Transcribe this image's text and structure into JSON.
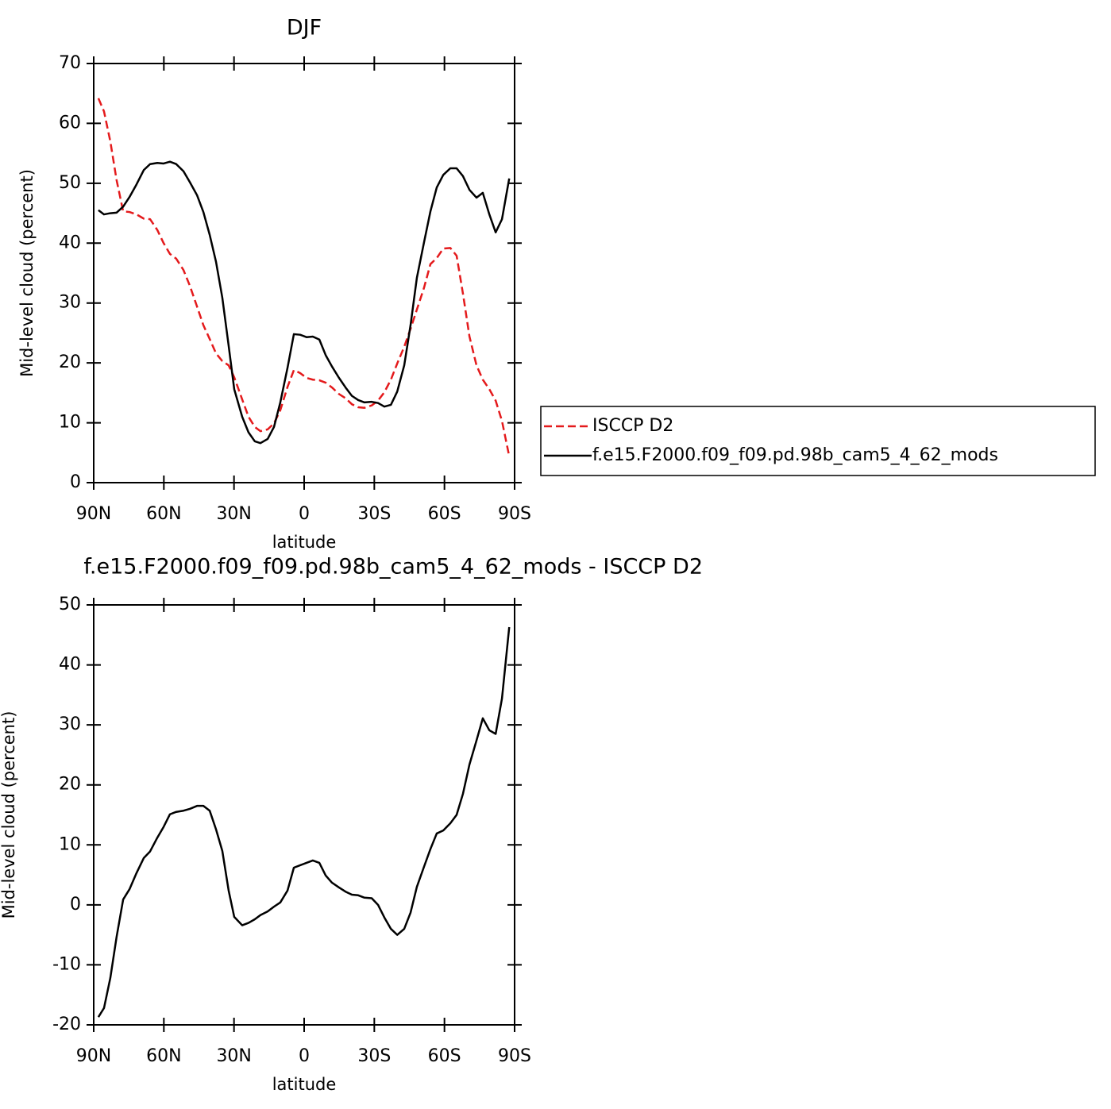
{
  "chart_data": [
    {
      "type": "line",
      "title": "DJF",
      "xlabel": "latitude",
      "ylabel": "Mid-level cloud (percent)",
      "x": [
        88.0,
        85.6,
        82.9,
        80.2,
        77.4,
        74.7,
        71.7,
        68.6,
        65.9,
        62.8,
        60.1,
        57.4,
        54.7,
        51.6,
        48.9,
        45.8,
        43.1,
        40.4,
        37.7,
        35.0,
        32.3,
        29.9,
        26.5,
        23.8,
        21.1,
        18.7,
        15.6,
        12.9,
        10.2,
        7.1,
        4.4,
        1.7,
        -1.0,
        -3.7,
        -6.5,
        -9.2,
        -11.9,
        -14.9,
        -17.7,
        -20.4,
        -23.1,
        -25.8,
        -28.9,
        -31.6,
        -34.3,
        -37.1,
        -39.8,
        -42.8,
        -45.5,
        -48.2,
        -51.3,
        -54.0,
        -56.7,
        -59.5,
        -62.5,
        -65.2,
        -67.9,
        -70.7,
        -73.7,
        -76.4,
        -79.2,
        -81.9,
        -84.6,
        -87.7
      ],
      "series": [
        {
          "name": "ISCCP D2",
          "color": "#e41a1c",
          "dashed": true,
          "values": [
            64.2,
            62.0,
            57.0,
            50.5,
            45.3,
            45.2,
            44.8,
            44.1,
            44.0,
            42.2,
            40.0,
            38.2,
            37.4,
            35.5,
            32.9,
            29.4,
            26.3,
            24.0,
            21.6,
            20.3,
            19.6,
            17.6,
            13.9,
            11.0,
            9.3,
            8.6,
            8.9,
            9.9,
            12.1,
            16.0,
            18.8,
            18.3,
            17.5,
            17.2,
            17.1,
            16.7,
            15.9,
            14.8,
            14.1,
            13.1,
            12.6,
            12.5,
            12.9,
            13.7,
            15.1,
            17.2,
            19.9,
            22.7,
            25.7,
            28.9,
            32.6,
            36.5,
            37.5,
            39.1,
            39.2,
            37.9,
            31.6,
            24.4,
            19.6,
            17.2,
            15.6,
            13.7,
            10.3,
            4.4
          ]
        },
        {
          "name": "f.e15.F2000.f09_f09.pd.98b_cam5_4_62_mods",
          "color": "#000000",
          "dashed": false,
          "values": [
            45.5,
            44.8,
            45.0,
            45.1,
            46.1,
            47.7,
            49.8,
            52.2,
            53.2,
            53.4,
            53.3,
            53.6,
            53.2,
            52.0,
            50.2,
            48.0,
            45.2,
            41.4,
            36.9,
            30.9,
            22.9,
            15.6,
            11.0,
            8.4,
            6.9,
            6.6,
            7.3,
            9.3,
            13.4,
            19.2,
            24.8,
            24.7,
            24.3,
            24.4,
            23.9,
            21.3,
            19.4,
            17.5,
            15.9,
            14.5,
            13.8,
            13.4,
            13.5,
            13.3,
            12.7,
            13.0,
            15.2,
            19.6,
            26.3,
            34.2,
            40.2,
            45.3,
            49.3,
            51.4,
            52.5,
            52.5,
            51.2,
            48.9,
            47.6,
            48.4,
            44.8,
            41.8,
            44.0,
            50.8
          ]
        }
      ],
      "xlim": [
        90,
        -90
      ],
      "xticks": [
        {
          "value": 90,
          "label": "90N"
        },
        {
          "value": 60,
          "label": "60N"
        },
        {
          "value": 30,
          "label": "30N"
        },
        0,
        {
          "value": -30,
          "label": "30S"
        },
        {
          "value": -60,
          "label": "60S"
        },
        {
          "value": -90,
          "label": "90S"
        }
      ],
      "ylim": [
        0,
        70
      ],
      "yticks": [
        0,
        10,
        20,
        30,
        40,
        50,
        60,
        70
      ],
      "legend": true
    },
    {
      "type": "line",
      "title": "f.e15.F2000.f09_f09.pd.98b_cam5_4_62_mods - ISCCP D2",
      "xlabel": "latitude",
      "ylabel": "Mid-level cloud (percent)",
      "x": [
        88.0,
        85.6,
        82.9,
        80.2,
        77.4,
        74.7,
        71.7,
        68.6,
        65.9,
        62.8,
        60.1,
        57.4,
        54.7,
        51.6,
        48.9,
        45.8,
        43.1,
        40.4,
        37.7,
        35.0,
        32.3,
        29.9,
        26.5,
        23.8,
        21.1,
        18.7,
        15.6,
        12.9,
        10.2,
        7.1,
        4.4,
        1.7,
        -1.0,
        -3.7,
        -6.5,
        -9.2,
        -11.9,
        -14.9,
        -17.7,
        -20.4,
        -23.1,
        -25.8,
        -28.9,
        -31.6,
        -34.3,
        -37.1,
        -39.8,
        -42.8,
        -45.5,
        -48.2,
        -51.3,
        -54.0,
        -56.7,
        -59.5,
        -62.5,
        -65.2,
        -67.9,
        -70.7,
        -73.7,
        -76.4,
        -79.2,
        -81.9,
        -84.6,
        -87.7
      ],
      "series": [
        {
          "color": "#000000",
          "dashed": false,
          "values": [
            -18.7,
            -17.2,
            -12.2,
            -5.3,
            0.9,
            2.6,
            5.3,
            7.8,
            8.9,
            11.2,
            13.0,
            15.1,
            15.5,
            15.7,
            16.0,
            16.5,
            16.5,
            15.7,
            12.6,
            9.0,
            2.4,
            -2.0,
            -3.4,
            -3.0,
            -2.4,
            -1.7,
            -1.1,
            -0.3,
            0.4,
            2.4,
            6.2,
            6.6,
            7.0,
            7.4,
            7.0,
            4.9,
            3.7,
            2.9,
            2.2,
            1.7,
            1.6,
            1.2,
            1.1,
            0.0,
            -2.1,
            -4.0,
            -5.0,
            -4.0,
            -1.3,
            3.0,
            6.4,
            9.3,
            11.9,
            12.4,
            13.6,
            15.0,
            18.5,
            23.4,
            27.4,
            31.1,
            29.1,
            28.5,
            34.4,
            46.3
          ]
        }
      ],
      "xlim": [
        90,
        -90
      ],
      "xticks": [
        {
          "value": 90,
          "label": "90N"
        },
        {
          "value": 60,
          "label": "60N"
        },
        {
          "value": 30,
          "label": "30N"
        },
        0,
        {
          "value": -30,
          "label": "30S"
        },
        {
          "value": -60,
          "label": "60S"
        },
        {
          "value": -90,
          "label": "90S"
        }
      ],
      "ylim": [
        -20,
        50
      ],
      "yticks": [
        -20,
        -10,
        0,
        10,
        20,
        30,
        40,
        50
      ],
      "legend": false
    }
  ]
}
